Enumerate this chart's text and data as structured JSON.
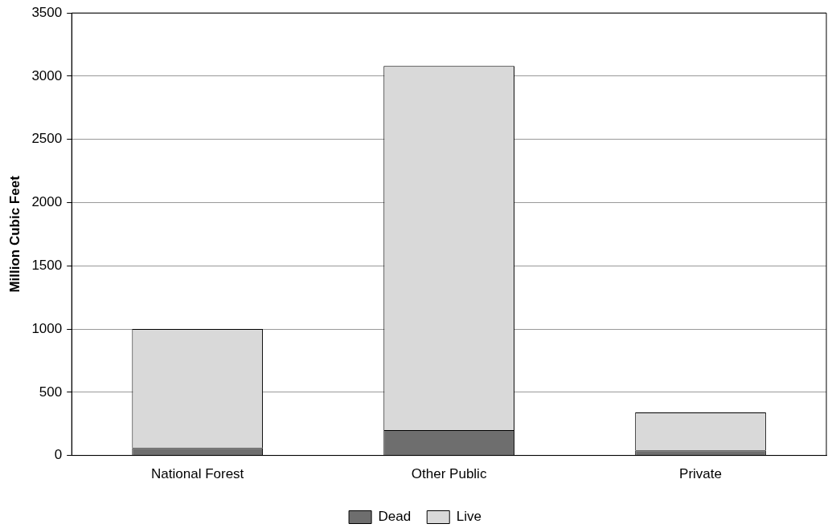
{
  "chart_data": {
    "type": "bar",
    "ylabel": "Million Cubic Feet",
    "categories": [
      "National Forest",
      "Other Public",
      "Private"
    ],
    "series": [
      {
        "name": "Dead",
        "color": "#6e6e6e",
        "values": [
          60,
          200,
          40
        ]
      },
      {
        "name": "Live",
        "color": "#d9d9d9",
        "values": [
          940,
          2880,
          300
        ]
      }
    ],
    "stacked": true,
    "ylim": [
      0,
      3500
    ],
    "yticks": [
      0,
      500,
      1000,
      1500,
      2000,
      2500,
      3000,
      3500
    ],
    "grid": "y",
    "legend": "bottom"
  }
}
